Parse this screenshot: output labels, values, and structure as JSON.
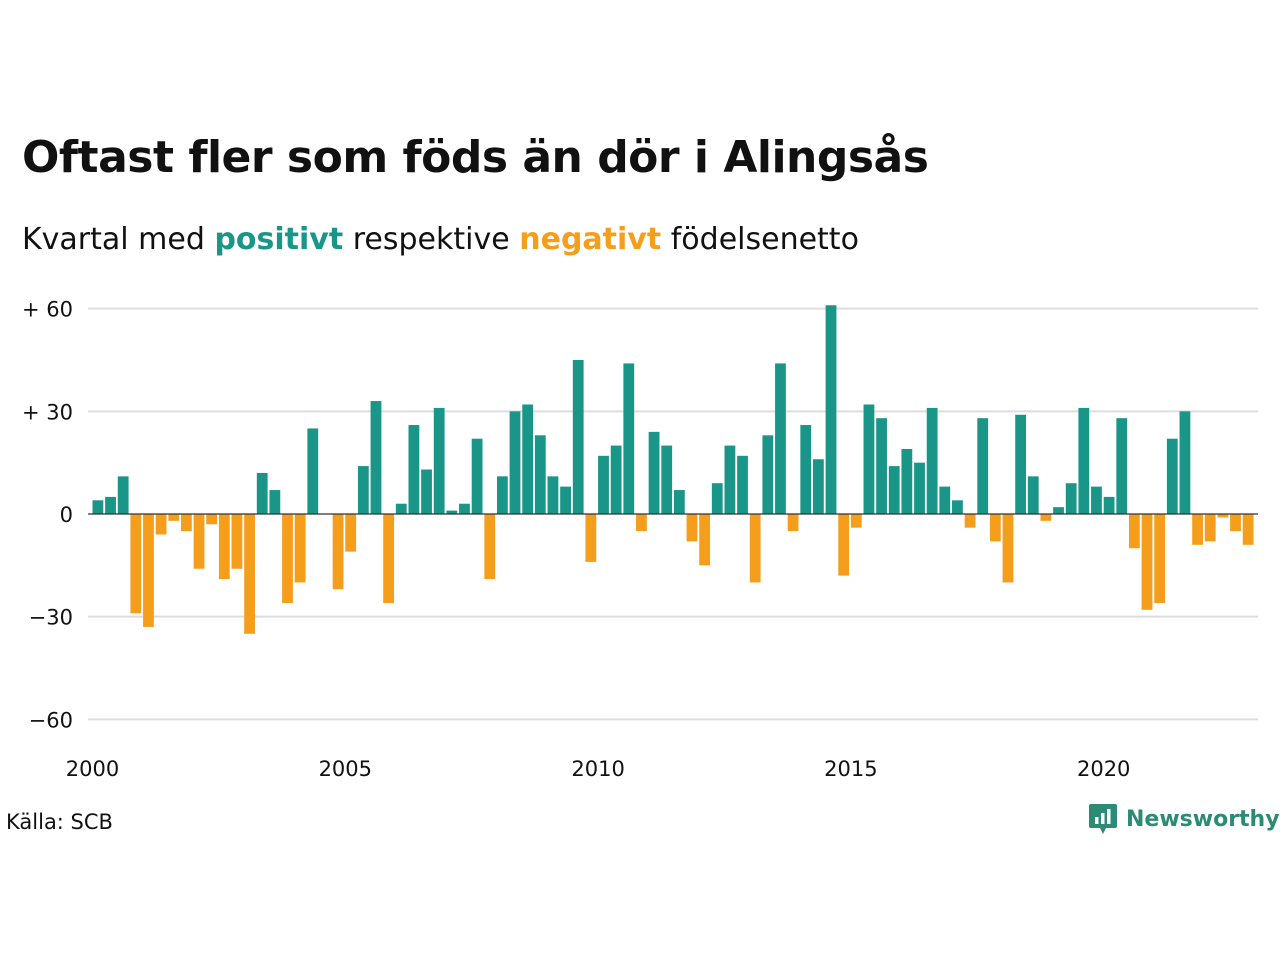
{
  "title": "Oftast fler som föds än dör i Alingsås",
  "subtitle": {
    "prefix": "Kvartal med",
    "positive_word": "positivt",
    "middle": "respektive",
    "negative_word": "negativt",
    "suffix": "födelsenetto"
  },
  "source": "Källa: SCB",
  "brand": {
    "name": "Newsworthy",
    "icon": "newsworthy-logo-icon"
  },
  "colors": {
    "positive": "#1a9688",
    "negative": "#f59e1c",
    "grid": "#dddddd",
    "text": "#111111"
  },
  "chart_data": {
    "type": "bar",
    "title": "Oftast fler som föds än dör i Alingsås",
    "subtitle": "Kvartal med positivt respektive negativt födelsenetto",
    "ylim": [
      -65,
      65
    ],
    "y_ticks": [
      60,
      30,
      0,
      -30,
      -60
    ],
    "y_tick_labels": [
      "+ 60",
      "+ 30",
      "0",
      "−30",
      "−60"
    ],
    "x_ticks": [
      2000,
      2005,
      2010,
      2015,
      2020
    ],
    "x_tick_labels": [
      "2000",
      "2005",
      "2010",
      "2015",
      "2020"
    ],
    "grid": true,
    "start": "2000 Q1",
    "categories": [
      "2000 Q1",
      "2000 Q2",
      "2000 Q3",
      "2000 Q4",
      "2001 Q1",
      "2001 Q2",
      "2001 Q3",
      "2001 Q4",
      "2002 Q1",
      "2002 Q2",
      "2002 Q3",
      "2002 Q4",
      "2003 Q1",
      "2003 Q2",
      "2003 Q3",
      "2003 Q4",
      "2004 Q1",
      "2004 Q2",
      "2004 Q3",
      "2004 Q4",
      "2005 Q1",
      "2005 Q2",
      "2005 Q3",
      "2005 Q4",
      "2006 Q1",
      "2006 Q2",
      "2006 Q3",
      "2006 Q4",
      "2007 Q1",
      "2007 Q2",
      "2007 Q3",
      "2007 Q4",
      "2008 Q1",
      "2008 Q2",
      "2008 Q3",
      "2008 Q4",
      "2009 Q1",
      "2009 Q2",
      "2009 Q3",
      "2009 Q4",
      "2010 Q1",
      "2010 Q2",
      "2010 Q3",
      "2010 Q4",
      "2011 Q1",
      "2011 Q2",
      "2011 Q3",
      "2011 Q4",
      "2012 Q1",
      "2012 Q2",
      "2012 Q3",
      "2012 Q4",
      "2013 Q1",
      "2013 Q2",
      "2013 Q3",
      "2013 Q4",
      "2014 Q1",
      "2014 Q2",
      "2014 Q3",
      "2014 Q4",
      "2015 Q1",
      "2015 Q2",
      "2015 Q3",
      "2015 Q4",
      "2016 Q1",
      "2016 Q2",
      "2016 Q3",
      "2016 Q4",
      "2017 Q1",
      "2017 Q2",
      "2017 Q3",
      "2017 Q4",
      "2018 Q1",
      "2018 Q2",
      "2018 Q3",
      "2018 Q4",
      "2019 Q1",
      "2019 Q2",
      "2019 Q3",
      "2019 Q4",
      "2020 Q1",
      "2020 Q2",
      "2020 Q3",
      "2020 Q4",
      "2021 Q1",
      "2021 Q2",
      "2021 Q3",
      "2021 Q4",
      "2022 Q1",
      "2022 Q2",
      "2022 Q3",
      "2022 Q4"
    ],
    "values": [
      4,
      5,
      11,
      -29,
      -33,
      -6,
      -2,
      -5,
      -16,
      -3,
      -19,
      -16,
      -35,
      12,
      7,
      -26,
      -20,
      25,
      0,
      -22,
      -11,
      14,
      33,
      -26,
      3,
      26,
      13,
      31,
      1,
      3,
      22,
      -19,
      11,
      30,
      32,
      23,
      11,
      8,
      45,
      -14,
      17,
      20,
      44,
      -5,
      24,
      20,
      7,
      -8,
      -15,
      9,
      20,
      17,
      -20,
      23,
      44,
      -5,
      26,
      16,
      61,
      -18,
      -4,
      32,
      28,
      14,
      19,
      15,
      31,
      8,
      4,
      -4,
      28,
      -8,
      -20,
      29,
      11,
      -2,
      2,
      9,
      31,
      8,
      5,
      28,
      -10,
      -28,
      -26,
      22,
      30,
      -9,
      -8,
      -1,
      -5,
      -9
    ]
  }
}
